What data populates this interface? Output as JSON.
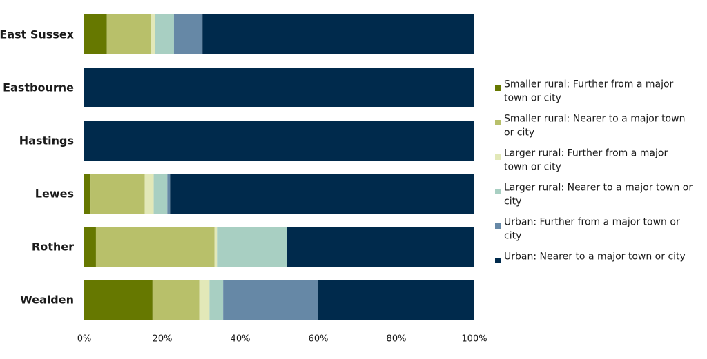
{
  "chart_data": {
    "type": "bar",
    "orientation": "horizontal",
    "stacked": true,
    "categories": [
      "East Sussex",
      "Eastbourne",
      "Hastings",
      "Lewes",
      "Rother",
      "Wealden"
    ],
    "series": [
      {
        "name": "Smaller rural: Further from a major town or city",
        "color": "#667800",
        "values": [
          5.8,
          0,
          0,
          1.6,
          3.0,
          17.5
        ]
      },
      {
        "name": "Smaller rural: Nearer to a major town or city",
        "color": "#b8c06a",
        "values": [
          11.2,
          0,
          0,
          13.9,
          30.4,
          12.0
        ]
      },
      {
        "name": "Larger rural: Further from a major town or city",
        "color": "#e2e8b8",
        "values": [
          1.2,
          0,
          0,
          2.3,
          0.8,
          2.6
        ]
      },
      {
        "name": "Larger rural: Nearer to a major town or city",
        "color": "#a8cfc2",
        "values": [
          4.8,
          0,
          0,
          3.5,
          17.8,
          3.5
        ]
      },
      {
        "name": "Urban: Further from a major town or city",
        "color": "#6688a6",
        "values": [
          7.3,
          0,
          0,
          0.7,
          0,
          24.3
        ]
      },
      {
        "name": "Urban: Nearer to a major town or city",
        "color": "#002a4c",
        "values": [
          69.7,
          100,
          100,
          78.0,
          48.0,
          40.1
        ]
      }
    ],
    "xlim": [
      0,
      100
    ],
    "xticks": [
      "0%",
      "20%",
      "40%",
      "60%",
      "80%",
      "100%"
    ],
    "grid": false,
    "legend_position": "right"
  }
}
